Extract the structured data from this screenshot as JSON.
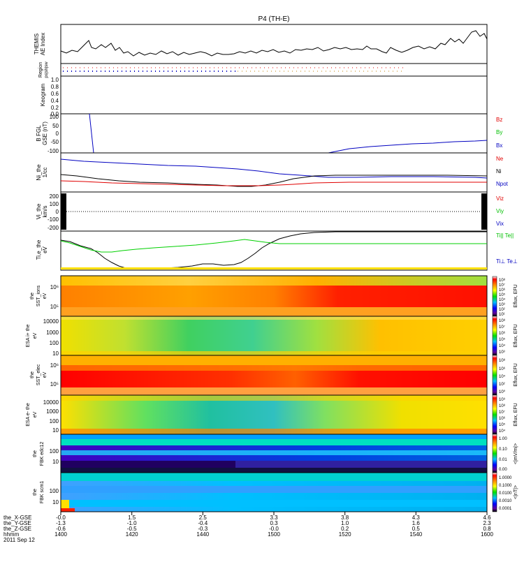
{
  "title": "P4 (TH-E)",
  "colors": {
    "black": "#000000",
    "red": "#e00000",
    "green": "#00c000",
    "blue": "#0000c0"
  },
  "panels": [
    {
      "id": "ae",
      "ylabel": [
        "THEMIS",
        "AE Index"
      ],
      "yticks": []
    },
    {
      "id": "region",
      "ylabel": [
        "Region",
        "ps|sh|sw"
      ],
      "yticks": []
    },
    {
      "id": "keogram",
      "ylabel": [
        "Keogram"
      ],
      "yticks": [
        "1.0",
        "0.8",
        "0.6",
        "0.4",
        "0.2",
        "0.0"
      ]
    },
    {
      "id": "bfgm",
      "ylabel": [
        "B FGL",
        "GSE (nT)"
      ],
      "yticks": [
        "100",
        "50",
        "0",
        "-50",
        "-100"
      ],
      "legend": [
        "Bz",
        "By",
        "Bx"
      ]
    },
    {
      "id": "density",
      "ylabel": [
        "Ni_the",
        "1/cc"
      ],
      "yticks": [],
      "legend": [
        "Ne",
        "Ni",
        "Npot"
      ]
    },
    {
      "id": "velocity",
      "ylabel": [
        "Vi_the",
        "km/s"
      ],
      "yticks": [
        "200",
        "100",
        "0",
        "-100",
        "-200"
      ],
      "legend": [
        "Viz",
        "Viy",
        "Vix"
      ]
    },
    {
      "id": "temp",
      "ylabel": [
        "Ti,e_the",
        "eV"
      ],
      "yticks": [],
      "legend": [
        "Ti|| Te||",
        "Ti⊥ Te⊥"
      ]
    },
    {
      "id": "sst_ions",
      "ylabel": [
        "the",
        "SST_ions",
        "eV"
      ],
      "yticks": [
        "10⁶",
        "10⁵"
      ],
      "cbar": [
        "10⁸",
        "10⁷",
        "10⁶",
        "10⁵",
        "10⁴",
        "10³",
        "10²",
        "10¹"
      ],
      "cbar_label": "Eflux, EFU"
    },
    {
      "id": "esa_ion",
      "ylabel": [
        "ESA i+ the",
        "eV"
      ],
      "yticks": [
        "10000",
        "1000",
        "100",
        "10"
      ],
      "cbar": [
        "10⁸",
        "10⁷",
        "10⁶",
        "10⁵",
        "10⁴",
        "10³"
      ],
      "cbar_label": "Eflux, EFU"
    },
    {
      "id": "sst_elec",
      "ylabel": [
        "the",
        "SST_elec",
        "eV"
      ],
      "yticks": [
        "10⁶",
        "10⁵"
      ],
      "cbar": [
        "10⁸",
        "10⁶",
        "10⁴",
        "10²",
        "10⁰"
      ],
      "cbar_label": "Eflux, EFU"
    },
    {
      "id": "esa_elec",
      "ylabel": [
        "ESA e- the",
        "eV"
      ],
      "yticks": [
        "10000",
        "1000",
        "100",
        "10"
      ],
      "cbar": [
        "10⁹",
        "10⁸",
        "10⁷",
        "10⁶",
        "10⁵",
        "10⁴"
      ],
      "cbar_label": "Eflux, EFU"
    },
    {
      "id": "fbk_edc",
      "ylabel": [
        "the",
        "FBK edc12"
      ],
      "yticks": [
        "100",
        "10"
      ],
      "cbar": [
        "1.00",
        "0.10",
        "0.01",
        "0.00"
      ],
      "cbar_label": "<|mV/m|>"
    },
    {
      "id": "fbk_scm",
      "ylabel": [
        "the",
        "FBK scm1"
      ],
      "yticks": [
        "100",
        "10"
      ],
      "cbar": [
        "1.0000",
        "0.1000",
        "0.0100",
        "0.0010",
        "0.0001"
      ],
      "cbar_label": "<|nT|>"
    }
  ],
  "xaxis": {
    "row_labels": [
      "the_X-GSE",
      "the_Y-GSE",
      "the_Z-GSE",
      "hhmm",
      "2011 Sep 12"
    ],
    "columns": [
      {
        "x": "-0.0",
        "y": "-1.3",
        "z": "-0.6",
        "t": "1400"
      },
      {
        "x": "1.5",
        "y": "-1.0",
        "z": "-0.5",
        "t": "1420"
      },
      {
        "x": "2.5",
        "y": "-0.4",
        "z": "-0.3",
        "t": "1440"
      },
      {
        "x": "3.3",
        "y": "0.3",
        "z": "-0.0",
        "t": "1500"
      },
      {
        "x": "3.8",
        "y": "1.0",
        "z": "0.2",
        "t": "1520"
      },
      {
        "x": "4.3",
        "y": "1.6",
        "z": "0.5",
        "t": "1540"
      },
      {
        "x": "4.6",
        "y": "2.3",
        "z": "0.8",
        "t": "1600"
      }
    ]
  },
  "chart_data": {
    "type": "line",
    "title": "P4 (TH-E)",
    "x_unit": "hhmm",
    "x": [
      "1400",
      "1410",
      "1420",
      "1430",
      "1440",
      "1450",
      "1500",
      "1510",
      "1520",
      "1530",
      "1540",
      "1550",
      "1600"
    ],
    "series": [
      {
        "name": "AE Index",
        "values": [
          60,
          100,
          65,
          70,
          60,
          45,
          50,
          80,
          95,
          70,
          90,
          120,
          150
        ]
      },
      {
        "name": "Bx",
        "values": [
          null,
          null,
          null,
          null,
          null,
          null,
          null,
          -100,
          -70,
          -55,
          -40,
          -30,
          -20
        ]
      },
      {
        "name": "Ne",
        "values": [
          0.3,
          0.25,
          0.25,
          0.22,
          0.2,
          0.2,
          0.25,
          0.3,
          0.3,
          0.3,
          0.3,
          0.3,
          0.3
        ]
      },
      {
        "name": "Ni",
        "values": [
          1.2,
          0.8,
          0.6,
          0.5,
          0.4,
          0.3,
          0.35,
          0.6,
          0.8,
          0.8,
          0.8,
          0.8,
          0.8
        ]
      },
      {
        "name": "Npot",
        "values": [
          5,
          4,
          3.5,
          3,
          2.5,
          1.5,
          0.6,
          1,
          1.5,
          1.5,
          1.5,
          1.5,
          1.5
        ]
      },
      {
        "name": "Ti||",
        "values": [
          30,
          20,
          25,
          35,
          40,
          50,
          60,
          30,
          25,
          25,
          25,
          25,
          25
        ]
      },
      {
        "name": "Te||",
        "values": [
          300,
          80,
          10,
          5,
          6,
          8,
          100,
          1000,
          1000,
          1000,
          1000,
          1000,
          1000
        ]
      }
    ]
  }
}
